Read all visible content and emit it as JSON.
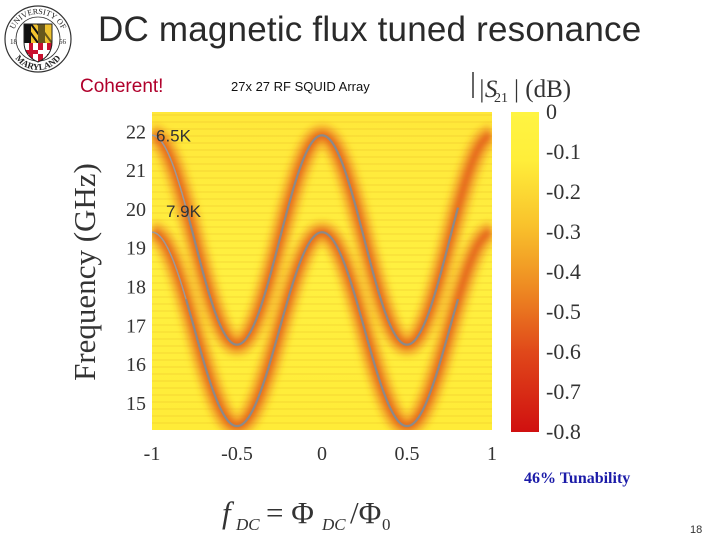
{
  "slide": {
    "title": "DC magnetic flux tuned resonance",
    "coherent_label": "Coherent!",
    "subtitle": "27x 27 RF SQUID Array",
    "tunability": "46% Tunability",
    "page_number": "18",
    "logo": {
      "top": "UNIVERSITY OF",
      "bottom": "MARYLAND",
      "year_left": "18",
      "year_right": "56"
    }
  },
  "chart_data": {
    "type": "heatmap",
    "title": "|S21| (dB)",
    "xlabel": "f_DC = Φ_DC/Φ_0",
    "ylabel": "Frequency (GHz)",
    "xlim": [
      -1,
      1
    ],
    "ylim": [
      14.3,
      22.5
    ],
    "x_ticks": [
      "-1",
      "-0.5",
      "0",
      "0.5",
      "1"
    ],
    "x_tick_values": [
      -1,
      -0.5,
      0,
      0.5,
      1
    ],
    "y_ticks": [
      "15",
      "16",
      "17",
      "18",
      "19",
      "20",
      "21",
      "22"
    ],
    "y_tick_values": [
      15,
      16,
      17,
      18,
      19,
      20,
      21,
      22
    ],
    "colorbar": {
      "label_main": "|S",
      "label_sub": "21",
      "label_end": "| (dB)",
      "range": [
        -0.8,
        0
      ],
      "ticks": [
        "0",
        "-0.1",
        "-0.2",
        "-0.3",
        "-0.4",
        "-0.5",
        "-0.6",
        "-0.7",
        "-0.8"
      ],
      "tick_values": [
        0,
        -0.1,
        -0.2,
        -0.3,
        -0.4,
        -0.5,
        -0.6,
        -0.7,
        -0.8
      ]
    },
    "series": [
      {
        "name": "6.5K",
        "f_max": 21.9,
        "f_min": 16.5
      },
      {
        "name": "7.9K",
        "f_max": 19.4,
        "f_min": 14.4
      }
    ],
    "annotations": [
      "6.5K",
      "7.9K"
    ]
  }
}
